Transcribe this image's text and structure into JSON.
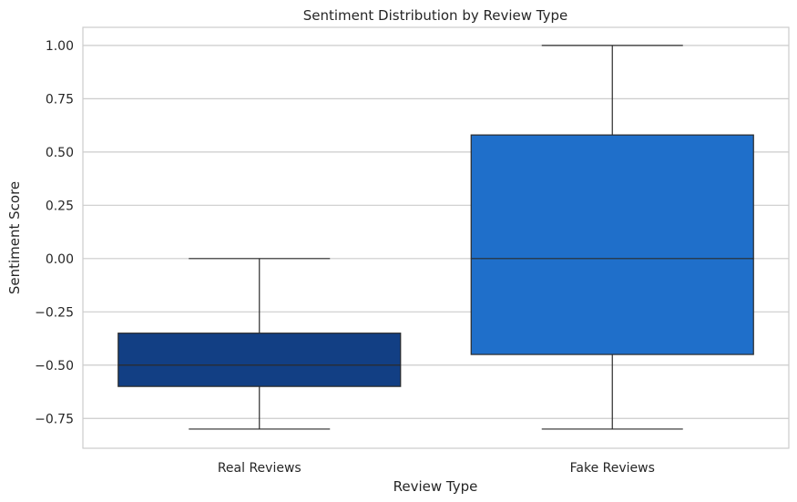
{
  "chart_data": {
    "type": "box",
    "title": "Sentiment Distribution by Review Type",
    "xlabel": "Review Type",
    "ylabel": "Sentiment Score",
    "ylim": [
      -0.89,
      1.085
    ],
    "yticks": [
      -0.75,
      -0.5,
      -0.25,
      0.0,
      0.25,
      0.5,
      0.75,
      1.0
    ],
    "ytick_labels": [
      "−0.75",
      "−0.50",
      "−0.25",
      "0.00",
      "0.25",
      "0.50",
      "0.75",
      "1.00"
    ],
    "grid": true,
    "categories": [
      "Real Reviews",
      "Fake Reviews"
    ],
    "boxes": [
      {
        "category": "Real Reviews",
        "whisker_low": -0.8,
        "q1": -0.6,
        "median": -0.5,
        "q3": -0.35,
        "whisker_high": 0.0,
        "color": "#123f84"
      },
      {
        "category": "Fake Reviews",
        "whisker_low": -0.8,
        "q1": -0.45,
        "median": 0.0,
        "q3": 0.58,
        "whisker_high": 1.0,
        "color": "#1f6fca"
      }
    ]
  }
}
